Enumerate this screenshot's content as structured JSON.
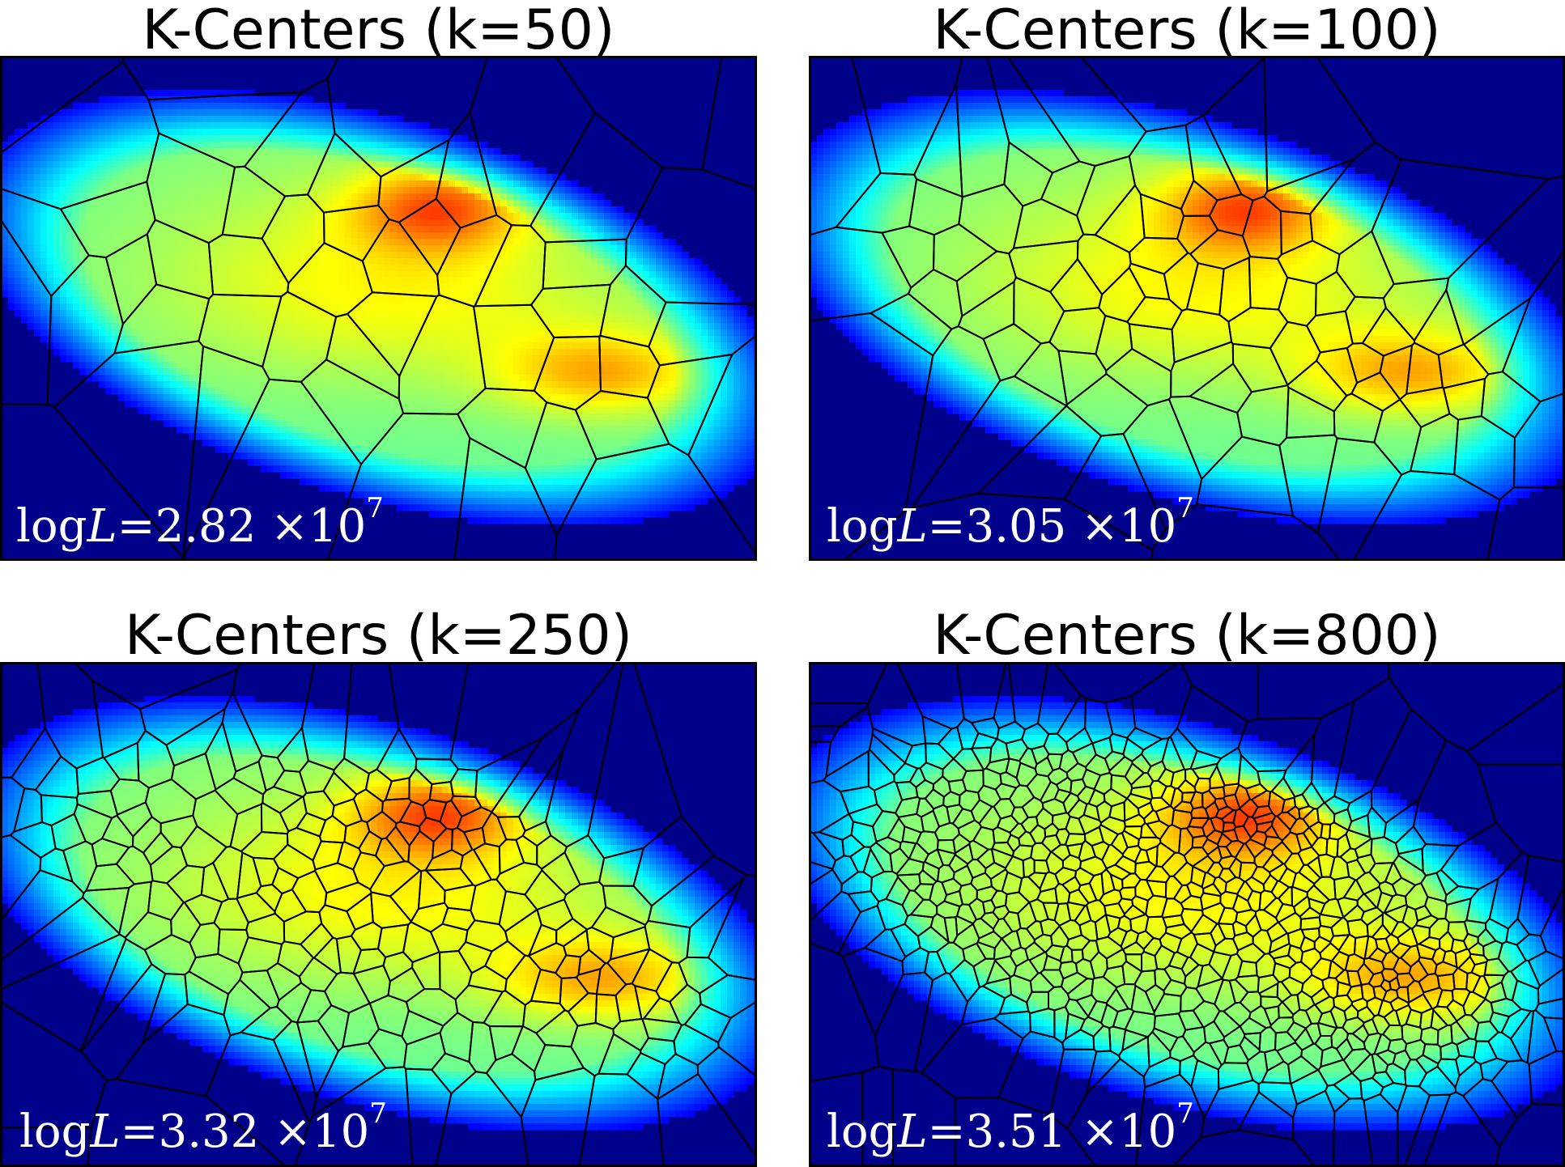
{
  "chart_data": [
    {
      "type": "heatmap",
      "title": "K-Centers (k=50)",
      "k": 50,
      "annotation": {
        "prefix": "log",
        "var": "L",
        "eq": "=",
        "value": "2.82",
        "times": "×10",
        "exp": "7"
      },
      "colormap": "jet",
      "overlay": "voronoi cells"
    },
    {
      "type": "heatmap",
      "title": "K-Centers (k=100)",
      "k": 100,
      "annotation": {
        "prefix": "log",
        "var": "L",
        "eq": "=",
        "value": "3.05",
        "times": "×10",
        "exp": "7"
      },
      "colormap": "jet",
      "overlay": "voronoi cells"
    },
    {
      "type": "heatmap",
      "title": "K-Centers (k=250)",
      "k": 250,
      "annotation": {
        "prefix": "log",
        "var": "L",
        "eq": "=",
        "value": "3.32",
        "times": "×10",
        "exp": "7"
      },
      "colormap": "jet",
      "overlay": "voronoi cells"
    },
    {
      "type": "heatmap",
      "title": "K-Centers (k=800)",
      "k": 800,
      "annotation": {
        "prefix": "log",
        "var": "L",
        "eq": "=",
        "value": "3.51",
        "times": "×10",
        "exp": "7"
      },
      "colormap": "jet",
      "overlay": "voronoi cells"
    }
  ],
  "colors": {
    "background": "#00008b",
    "cell_edges": "#000000",
    "annotation_text": "#ffffff"
  }
}
